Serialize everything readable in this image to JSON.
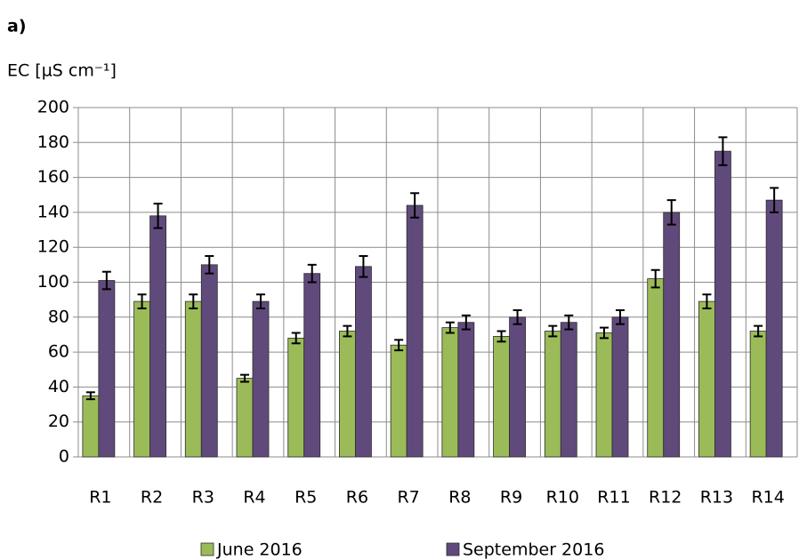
{
  "chart_data": {
    "type": "bar",
    "panel_label": "a)",
    "y_label": "EC [µS cm⁻¹]",
    "categories": [
      "R1",
      "R2",
      "R3",
      "R4",
      "R5",
      "R6",
      "R7",
      "R8",
      "R9",
      "R10",
      "R11",
      "R12",
      "R13",
      "R14"
    ],
    "series": [
      {
        "name": "June 2016",
        "color": "#9bbb59",
        "values": [
          35,
          89,
          89,
          45,
          68,
          72,
          64,
          74,
          69,
          72,
          71,
          102,
          89,
          72
        ],
        "errors": [
          2,
          4,
          4,
          2,
          3,
          3,
          3,
          3,
          3,
          3,
          3,
          5,
          4,
          3
        ]
      },
      {
        "name": "September 2016",
        "color": "#604a7b",
        "values": [
          101,
          138,
          110,
          89,
          105,
          109,
          144,
          77,
          80,
          77,
          80,
          140,
          175,
          147
        ],
        "errors": [
          5,
          7,
          5,
          4,
          5,
          6,
          7,
          4,
          4,
          4,
          4,
          7,
          8,
          7
        ]
      }
    ],
    "ylim": [
      0,
      200
    ],
    "yticks": [
      0,
      20,
      40,
      60,
      80,
      100,
      120,
      140,
      160,
      180,
      200
    ],
    "grid": true,
    "legend": "bottom"
  }
}
